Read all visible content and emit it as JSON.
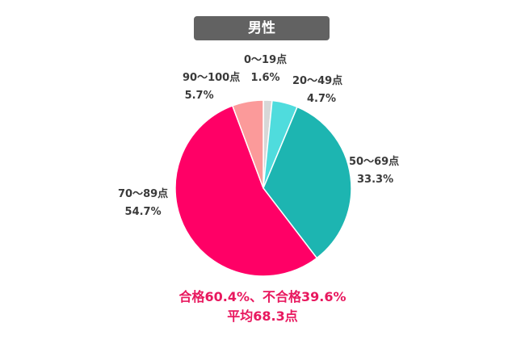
{
  "chart_data": {
    "type": "pie",
    "title": "男性",
    "categories": [
      "0〜19点",
      "20〜49点",
      "50〜69点",
      "70〜89点",
      "90〜100点"
    ],
    "values": [
      1.6,
      4.7,
      33.3,
      54.7,
      5.7
    ],
    "value_labels": [
      "1.6%",
      "4.7%",
      "33.3%",
      "54.7%",
      "5.7%"
    ],
    "colors": [
      "#d7d7d7",
      "#4fdcdd",
      "#1db5b1",
      "#ff0066",
      "#fb9a9a"
    ],
    "start_angle": "12 o'clock",
    "direction": "clockwise",
    "annotations": [
      "合格60.4%、不合格39.6%",
      "平均68.3点"
    ]
  }
}
